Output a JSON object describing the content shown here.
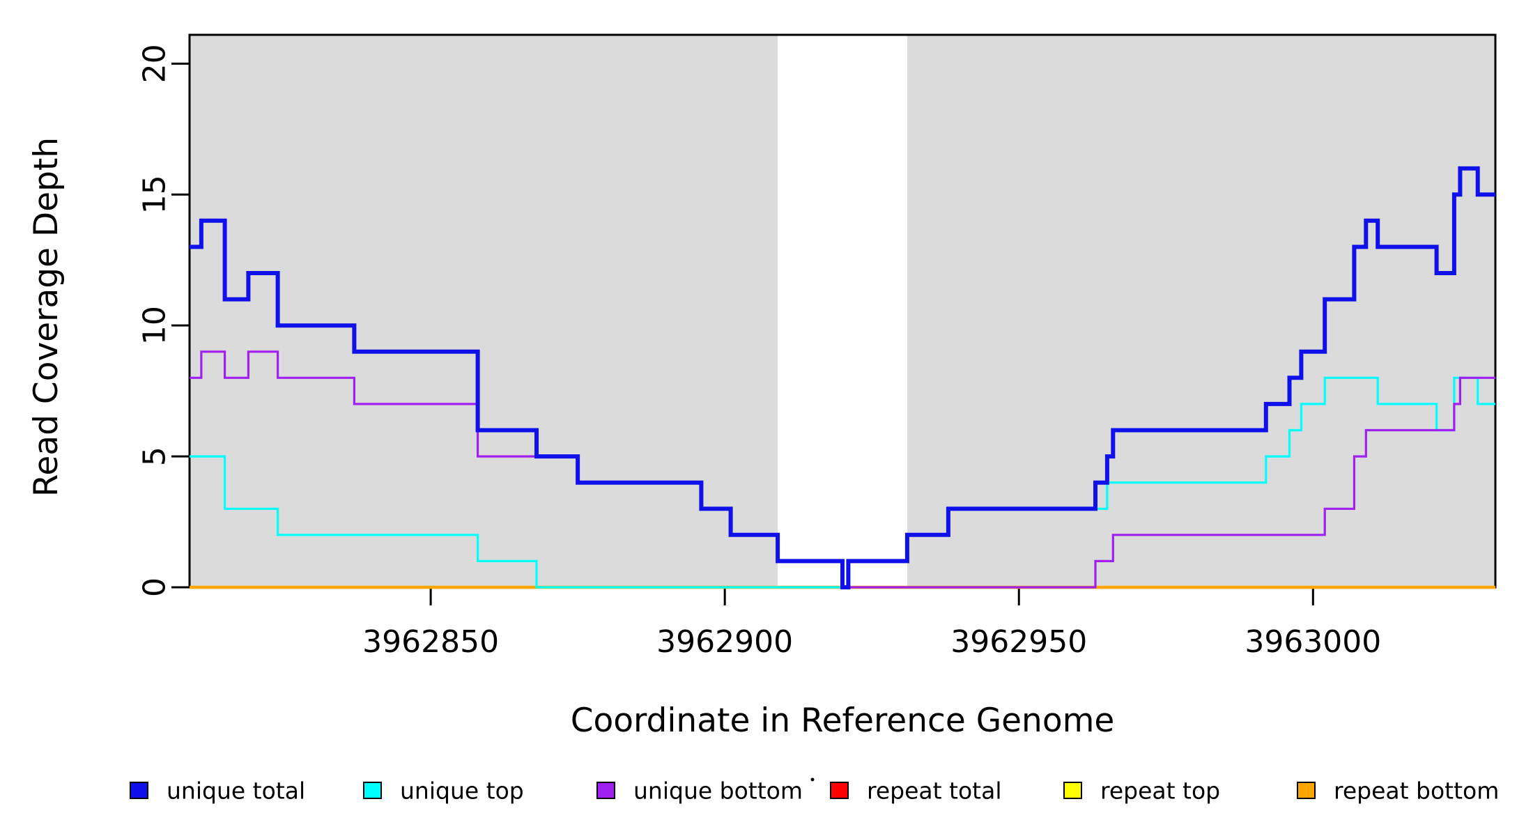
{
  "chart_data": {
    "type": "line",
    "subtype": "step",
    "title": "",
    "xlabel": "Coordinate in Reference Genome",
    "ylabel": "Read Coverage Depth",
    "xlim": [
      3962809,
      3963031
    ],
    "ylim": [
      0,
      21.1
    ],
    "x_ticks": [
      3962850,
      3962900,
      3962950,
      3963000
    ],
    "y_ticks": [
      0,
      5,
      10,
      15,
      20
    ],
    "grid": false,
    "legend_position": "bottom",
    "background_color": "#FFFFFF",
    "shaded_region_color": "#DBDBDB",
    "shaded_regions": [
      {
        "name": "left-repeat-mask-band",
        "from": 3962809,
        "to": 3962909
      },
      {
        "name": "right-repeat-mask-band",
        "from": 3962931,
        "to": 3963031
      }
    ],
    "series": [
      {
        "name": "unique total",
        "color": "#1010EB",
        "line_width": 6,
        "steps": [
          [
            3962809,
            13
          ],
          [
            3962811,
            14
          ],
          [
            3962815,
            11
          ],
          [
            3962819,
            12
          ],
          [
            3962824,
            10
          ],
          [
            3962837,
            9
          ],
          [
            3962858,
            6
          ],
          [
            3962868,
            5
          ],
          [
            3962875,
            4
          ],
          [
            3962896,
            3
          ],
          [
            3962901,
            2
          ],
          [
            3962909,
            1
          ],
          [
            3962920,
            0
          ],
          [
            3962921,
            1
          ],
          [
            3962931,
            2
          ],
          [
            3962938,
            3
          ],
          [
            3962963,
            4
          ],
          [
            3962965,
            5
          ],
          [
            3962966,
            6
          ],
          [
            3962992,
            7
          ],
          [
            3962996,
            8
          ],
          [
            3962998,
            9
          ],
          [
            3963002,
            11
          ],
          [
            3963007,
            13
          ],
          [
            3963009,
            14
          ],
          [
            3963011,
            13
          ],
          [
            3963021,
            12
          ],
          [
            3963024,
            15
          ],
          [
            3963025,
            16
          ],
          [
            3963028,
            15
          ]
        ]
      },
      {
        "name": "unique top",
        "color": "#00FFFF",
        "line_width": 3.2,
        "steps": [
          [
            3962809,
            5
          ],
          [
            3962815,
            3
          ],
          [
            3962824,
            2
          ],
          [
            3962858,
            1
          ],
          [
            3962868,
            0
          ],
          [
            3962921,
            1
          ],
          [
            3962931,
            2
          ],
          [
            3962938,
            3
          ],
          [
            3962965,
            4
          ],
          [
            3962992,
            5
          ],
          [
            3962996,
            6
          ],
          [
            3962998,
            7
          ],
          [
            3963002,
            8
          ],
          [
            3963011,
            7
          ],
          [
            3963021,
            6
          ],
          [
            3963024,
            8
          ],
          [
            3963028,
            7
          ]
        ]
      },
      {
        "name": "unique bottom",
        "color": "#A020F0",
        "line_width": 3.2,
        "steps": [
          [
            3962809,
            8
          ],
          [
            3962811,
            9
          ],
          [
            3962815,
            8
          ],
          [
            3962819,
            9
          ],
          [
            3962824,
            8
          ],
          [
            3962837,
            7
          ],
          [
            3962858,
            5
          ],
          [
            3962875,
            4
          ],
          [
            3962896,
            3
          ],
          [
            3962901,
            2
          ],
          [
            3962909,
            1
          ],
          [
            3962920,
            0
          ],
          [
            3962963,
            1
          ],
          [
            3962966,
            2
          ],
          [
            3963002,
            3
          ],
          [
            3963007,
            5
          ],
          [
            3963009,
            6
          ],
          [
            3963024,
            7
          ],
          [
            3963025,
            8
          ]
        ]
      },
      {
        "name": "repeat total",
        "color": "#FF0000",
        "line_width": 3,
        "steps": [
          [
            3962809,
            0
          ]
        ]
      },
      {
        "name": "repeat top",
        "color": "#FFFF00",
        "line_width": 3,
        "steps": [
          [
            3962809,
            0
          ]
        ]
      },
      {
        "name": "repeat bottom",
        "color": "#FFA500",
        "line_width": 4.5,
        "steps": [
          [
            3962809,
            0
          ]
        ]
      }
    ],
    "draw_order": [
      3,
      4,
      5,
      1,
      2,
      0
    ],
    "legend": [
      {
        "label": "unique total",
        "color": "#1010EB"
      },
      {
        "label": "unique top",
        "color": "#00FFFF"
      },
      {
        "label": "unique bottom",
        "color": "#A020F0"
      },
      {
        "label": "repeat total",
        "color": "#FF0000"
      },
      {
        "label": "repeat top",
        "color": "#FFFF00"
      },
      {
        "label": "repeat bottom",
        "color": "#FFA500"
      }
    ],
    "stray_dot": {
      "x": 1166,
      "y": 1119
    }
  }
}
